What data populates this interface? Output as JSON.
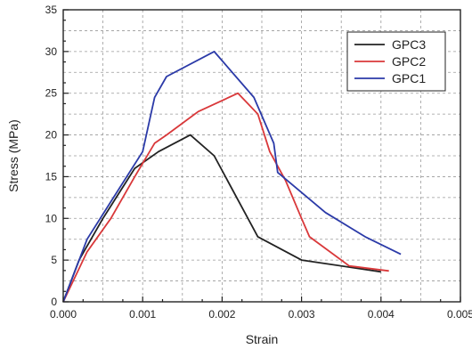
{
  "chart_data": {
    "type": "line",
    "title": "",
    "xlabel": "Strain",
    "ylabel": "Stress (MPa)",
    "xlim": [
      0.0,
      0.005
    ],
    "ylim": [
      0,
      35
    ],
    "xticks": [
      "0.000",
      "0.001",
      "0.002",
      "0.003",
      "0.004",
      "0.005"
    ],
    "yticks": [
      "0",
      "5",
      "10",
      "15",
      "20",
      "25",
      "30",
      "35"
    ],
    "xtick_values": [
      0,
      0.001,
      0.002,
      0.003,
      0.004,
      0.005
    ],
    "ytick_values": [
      0,
      5,
      10,
      15,
      20,
      25,
      30,
      35
    ],
    "grid": true,
    "legend_position": "top-right",
    "series": [
      {
        "name": "GPC3",
        "color": "#222222",
        "x": [
          0,
          0.0002,
          0.0005,
          0.0009,
          0.0012,
          0.0016,
          0.0019,
          0.00245,
          0.003,
          0.004
        ],
        "y": [
          0,
          5,
          10,
          16,
          18,
          20,
          17.5,
          7.8,
          5,
          3.6
        ]
      },
      {
        "name": "GPC2",
        "color": "#d9383a",
        "x": [
          0,
          0.0003,
          0.0006,
          0.0009,
          0.00115,
          0.0013,
          0.0017,
          0.0022,
          0.00245,
          0.0026,
          0.0028,
          0.003,
          0.0031,
          0.0036,
          0.0041
        ],
        "y": [
          0,
          6,
          10,
          15,
          19,
          20,
          22.8,
          25,
          22.5,
          18,
          14.5,
          10,
          7.8,
          4.3,
          3.7
        ]
      },
      {
        "name": "GPC1",
        "color": "#2b3aa8",
        "x": [
          0,
          0.0003,
          0.0006,
          0.001,
          0.00115,
          0.0013,
          0.0019,
          0.0024,
          0.00265,
          0.0027,
          0.0033,
          0.0038,
          0.00425
        ],
        "y": [
          0,
          7.5,
          12,
          18,
          24.5,
          27,
          30,
          24.5,
          19,
          15.5,
          10.7,
          7.8,
          5.7
        ]
      }
    ]
  }
}
